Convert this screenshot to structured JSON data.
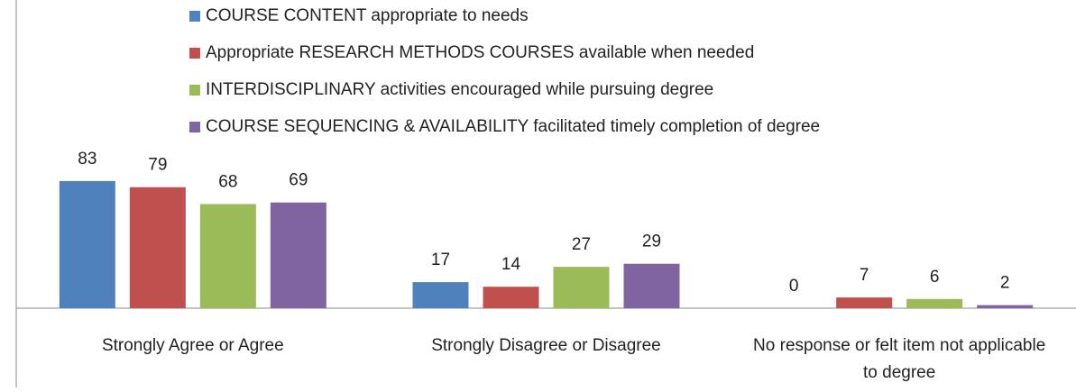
{
  "chart_data": {
    "type": "bar",
    "categories": [
      "Strongly Agree or Agree",
      "Strongly Disagree or Disagree",
      "No response or felt item not applicable to degree"
    ],
    "series": [
      {
        "name": "COURSE CONTENT appropriate to needs",
        "color": "#4f81bd",
        "values": [
          83,
          17,
          0
        ]
      },
      {
        "name": "Appropriate RESEARCH METHODS COURSES available when needed",
        "color": "#c0504d",
        "values": [
          79,
          14,
          7
        ]
      },
      {
        "name": "INTERDISCIPLINARY activities encouraged while pursuing degree",
        "color": "#9bbb59",
        "values": [
          68,
          27,
          6
        ]
      },
      {
        "name": "COURSE SEQUENCING & AVAILABILITY facilitated timely completion of degree",
        "color": "#8064a2",
        "values": [
          69,
          29,
          2
        ]
      }
    ],
    "legend": "top"
  }
}
